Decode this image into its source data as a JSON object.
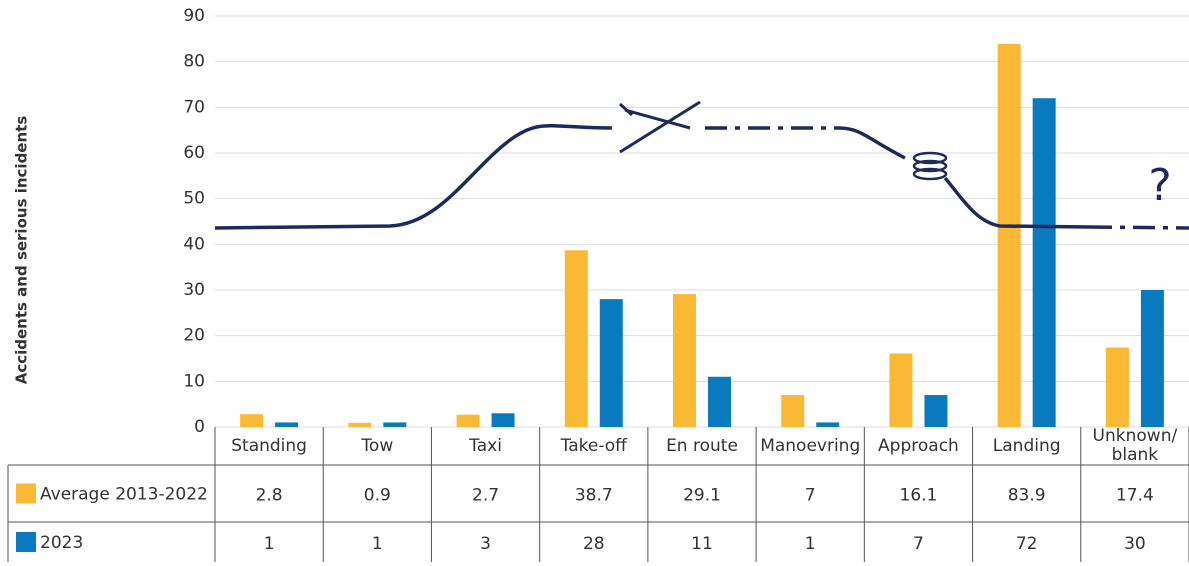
{
  "chart_data": {
    "type": "bar",
    "y_label": "Accidents and serious incidents",
    "categories": [
      "Standing",
      "Tow",
      "Taxi",
      "Take-off",
      "En route",
      "Manoevring",
      "Approach",
      "Landing",
      "Unknown/ blank"
    ],
    "series": [
      {
        "name": "Average 2013-2022",
        "color": "#f9b934",
        "values": [
          2.8,
          0.9,
          2.7,
          38.7,
          29.1,
          7,
          16.1,
          83.9,
          17.4
        ]
      },
      {
        "name": "2023",
        "color": "#0a7abf",
        "values": [
          1,
          1,
          3,
          28,
          11,
          1,
          7,
          72,
          30
        ]
      }
    ],
    "ylim": [
      0,
      90
    ],
    "yticks": [
      0,
      10,
      20,
      30,
      40,
      50,
      60,
      70,
      80,
      90
    ],
    "grid": true,
    "data_table": true
  }
}
